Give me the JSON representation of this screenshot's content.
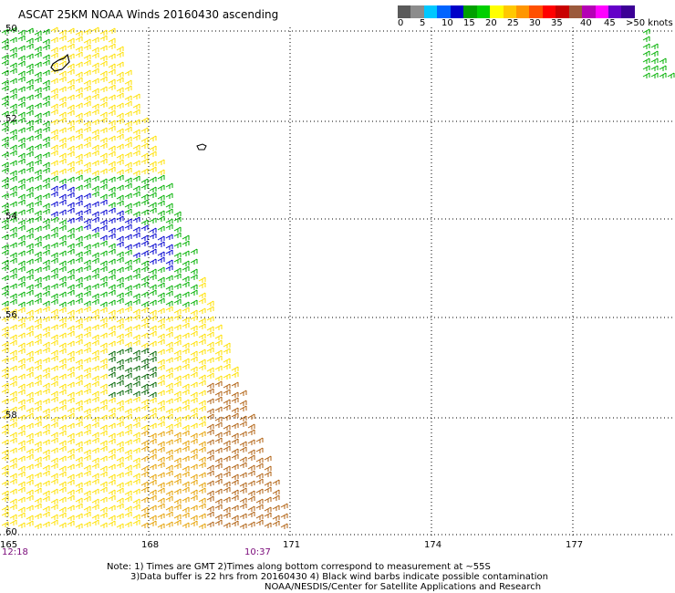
{
  "title": "ASCAT 25KM NOAA Winds 20160430 ascending",
  "scale": {
    "colors": [
      "#5a5a5a",
      "#8c8c8c",
      "#00c8ff",
      "#0064ff",
      "#0000c8",
      "#00a000",
      "#00d000",
      "#ffff00",
      "#ffc800",
      "#ff9600",
      "#ff5000",
      "#ff0000",
      "#c80000",
      "#9b5a3c",
      "#b400b4",
      "#ff00ff",
      "#6400c8",
      "#3c0096"
    ],
    "labels": [
      "0",
      "5",
      "10",
      "15",
      "20",
      "25",
      "30",
      "35",
      "40",
      "45",
      ">50 knots"
    ]
  },
  "axes": {
    "lon_labels": [
      "165",
      "168",
      "171",
      "174",
      "177"
    ],
    "lat_labels": [
      "50",
      "52",
      "54",
      "56",
      "58",
      "60"
    ]
  },
  "times": {
    "left": "12:18",
    "right": "10:37"
  },
  "notes": {
    "line1": "Note: 1) Times are GMT 2)Times along bottom correspond to measurement at ~55S",
    "line2": "3)Data buffer is 22 hrs from 20160430 4) Black wind barbs indicate possible contamination",
    "line3": "NOAA/NESDIS/Center for Satellite Applications and Research"
  },
  "legend_colors": {
    "blue": "#0000d0",
    "green": "#00b000",
    "dark_green": "#006400",
    "yellow": "#ffe000",
    "orange": "#e6a000",
    "brown": "#b06010"
  }
}
